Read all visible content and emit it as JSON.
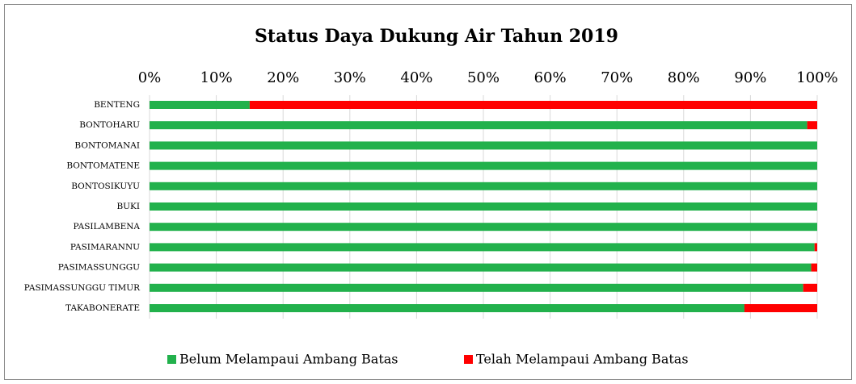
{
  "chart_data": {
    "type": "stacked_barh",
    "title": "Status Daya Dukung Air Tahun 2019",
    "categories": [
      "BENTENG",
      "BONTOHARU",
      "BONTOMANAI",
      "BONTOMATENE",
      "BONTOSIKUYU",
      "BUKI",
      "PASILAMBENA",
      "PASIMARANNU",
      "PASIMASSUNGGU",
      "PASIMASSUNGGU TIMUR",
      "TAKABONERATE"
    ],
    "series": [
      {
        "name": "Belum Melampaui Ambang Batas",
        "color": "#22b14c",
        "values": [
          15,
          98.5,
          100,
          100,
          100,
          100,
          100,
          99.6,
          99.1,
          97.9,
          89.1
        ]
      },
      {
        "name": "Telah Melampaui Ambang Batas",
        "color": "#ff0000",
        "values": [
          85,
          1.5,
          0,
          0,
          0,
          0,
          0,
          0.4,
          0.9,
          2.1,
          10.9
        ]
      }
    ],
    "xlim": [
      0,
      100
    ],
    "xticks": [
      {
        "value": 0,
        "label": "0%"
      },
      {
        "value": 10,
        "label": "10%"
      },
      {
        "value": 20,
        "label": "20%"
      },
      {
        "value": 30,
        "label": "30%"
      },
      {
        "value": 40,
        "label": "40%"
      },
      {
        "value": 50,
        "label": "50%"
      },
      {
        "value": 60,
        "label": "60%"
      },
      {
        "value": 70,
        "label": "70%"
      },
      {
        "value": 80,
        "label": "80%"
      },
      {
        "value": 90,
        "label": "90%"
      },
      {
        "value": 100,
        "label": "100%"
      }
    ],
    "grid": true,
    "legend": "bottom"
  }
}
